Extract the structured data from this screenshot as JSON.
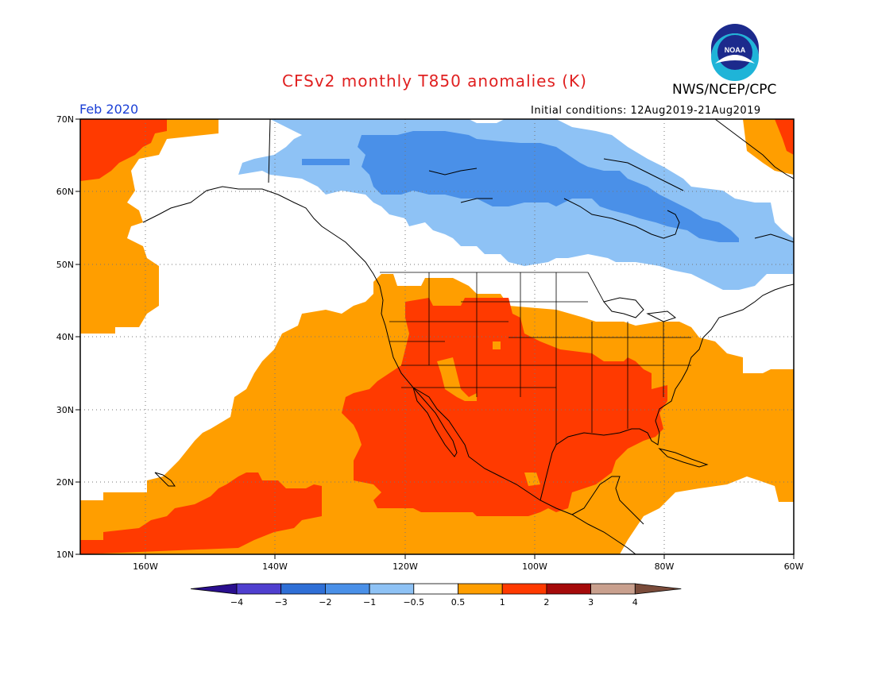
{
  "title": "CFSv2 monthly T850 anomalies (K)",
  "agency": "NWS/NCEP/CPC",
  "logo_text": "NOAA",
  "valid_month": "Feb 2020",
  "initial_conditions": "Initial conditions: 12Aug2019-21Aug2019",
  "lat_labels": [
    "70N",
    "60N",
    "50N",
    "40N",
    "30N",
    "20N",
    "10N"
  ],
  "lon_labels": [
    "160W",
    "140W",
    "120W",
    "100W",
    "80W",
    "60W"
  ],
  "colorbar": {
    "labels": [
      "−4",
      "−3",
      "−2",
      "−1",
      "−0.5",
      "0.5",
      "1",
      "2",
      "3",
      "4"
    ],
    "colors": [
      "#2a0f8f",
      "#4f3fcf",
      "#2f6fd6",
      "#4a90e8",
      "#8ec2f5",
      "#ffffff",
      "#ff9e00",
      "#ff3a00",
      "#a50a0a",
      "#c9a08e",
      "#7a4b3a"
    ]
  },
  "palette": {
    "orange": "#ff9e00",
    "red": "#ff3a00",
    "lightblue": "#8ec2f5",
    "blue": "#4a90e8",
    "title_red": "#e02020",
    "month_blue": "#1a3fd6"
  }
}
